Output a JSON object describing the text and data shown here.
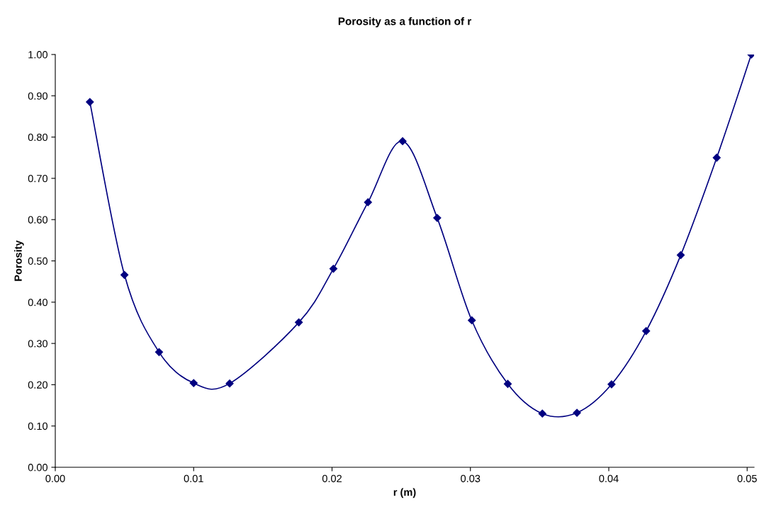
{
  "chart_data": {
    "type": "line",
    "title": "Porosity as a function of r",
    "xlabel": "r (m)",
    "ylabel": "Porosity",
    "x": [
      0.0025,
      0.005,
      0.0075,
      0.01,
      0.0126,
      0.0176,
      0.0201,
      0.0226,
      0.0251,
      0.0276,
      0.0301,
      0.0327,
      0.0352,
      0.0377,
      0.0402,
      0.0427,
      0.0452,
      0.0478,
      0.0503
    ],
    "series": [
      {
        "color": "#000080",
        "values": [
          0.885,
          0.466,
          0.279,
          0.204,
          0.203,
          0.351,
          0.481,
          0.642,
          0.79,
          0.604,
          0.356,
          0.202,
          0.13,
          0.132,
          0.201,
          0.33,
          0.514,
          0.75,
          1.0
        ]
      }
    ],
    "xlim": [
      0,
      0.0505
    ],
    "xticks": [
      {
        "value": 0,
        "label": "0.00"
      },
      {
        "value": 0.01,
        "label": "0.01"
      },
      {
        "value": 0.02,
        "label": "0.02"
      },
      {
        "value": 0.03,
        "label": "0.03"
      },
      {
        "value": 0.04,
        "label": "0.04"
      },
      {
        "value": 0.05,
        "label": "0.05"
      }
    ],
    "ylim": [
      0,
      1
    ],
    "yticks": [
      {
        "value": 0,
        "label": "0.00"
      },
      {
        "value": 0.1,
        "label": "0.10"
      },
      {
        "value": 0.2,
        "label": "0.20"
      },
      {
        "value": 0.3,
        "label": "0.30"
      },
      {
        "value": 0.4,
        "label": "0.40"
      },
      {
        "value": 0.5,
        "label": "0.50"
      },
      {
        "value": 0.6,
        "label": "0.60"
      },
      {
        "value": 0.7,
        "label": "0.70"
      },
      {
        "value": 0.8,
        "label": "0.80"
      },
      {
        "value": 0.9,
        "label": "0.90"
      },
      {
        "value": 1.0,
        "label": "1.00"
      }
    ],
    "grid": false,
    "legend": false,
    "marker": "diamond",
    "line_style": "solid"
  }
}
